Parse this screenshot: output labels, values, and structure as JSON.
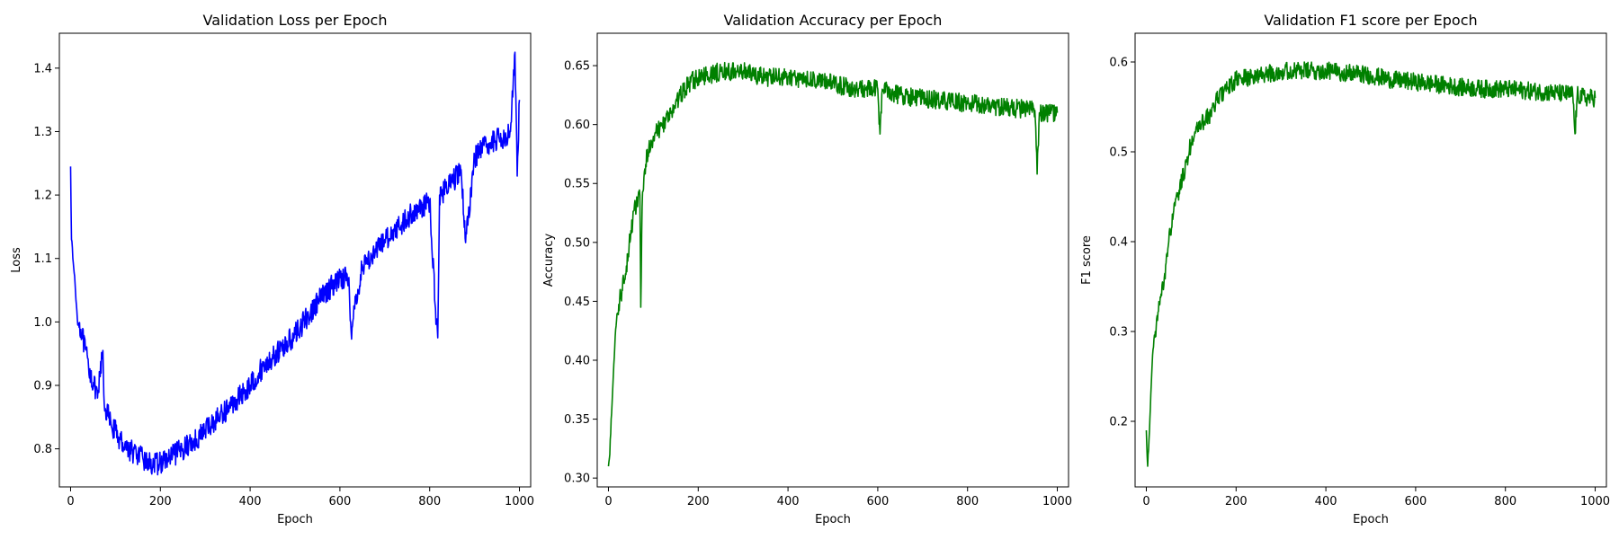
{
  "chart_data": [
    {
      "type": "line",
      "title": "Validation Loss per Epoch",
      "xlabel": "Epoch",
      "ylabel": "Loss",
      "xlim": [
        -25,
        1025
      ],
      "ylim": [
        0.74,
        1.455
      ],
      "xticks": [
        0,
        200,
        400,
        600,
        800,
        1000
      ],
      "xtick_labels": [
        "0",
        "200",
        "400",
        "600",
        "800",
        "1000"
      ],
      "yticks": [
        0.8,
        0.9,
        1.0,
        1.1,
        1.2,
        1.3,
        1.4
      ],
      "ytick_labels": [
        "0.8",
        "0.9",
        "1.0",
        "1.1",
        "1.2",
        "1.3",
        "1.4"
      ],
      "grid": false,
      "color": "#0000ff",
      "series": [
        {
          "x": [
            0,
            2,
            5,
            10,
            15,
            25,
            40,
            60,
            72,
            75,
            90,
            110,
            130,
            150,
            170,
            185,
            200,
            220,
            250,
            280,
            300,
            330,
            360,
            400,
            430,
            460,
            500,
            530,
            560,
            600,
            620,
            625,
            650,
            680,
            700,
            730,
            760,
            800,
            815,
            818,
            822,
            850,
            870,
            880,
            900,
            930,
            960,
            980,
            990,
            995,
            1000
          ],
          "y": [
            1.245,
            1.13,
            1.1,
            1.06,
            1.005,
            0.98,
            0.93,
            0.88,
            0.955,
            0.87,
            0.84,
            0.815,
            0.8,
            0.79,
            0.78,
            0.775,
            0.778,
            0.785,
            0.8,
            0.815,
            0.83,
            0.85,
            0.87,
            0.9,
            0.93,
            0.95,
            0.98,
            1.01,
            1.04,
            1.07,
            1.07,
            0.985,
            1.09,
            1.11,
            1.13,
            1.15,
            1.17,
            1.19,
            1.0,
            0.975,
            1.2,
            1.22,
            1.24,
            1.125,
            1.26,
            1.28,
            1.29,
            1.3,
            1.425,
            1.23,
            1.35
          ]
        }
      ]
    },
    {
      "type": "line",
      "title": "Validation Accuracy per Epoch",
      "xlabel": "Epoch",
      "ylabel": "Accuracy",
      "xlim": [
        -25,
        1025
      ],
      "ylim": [
        0.2925,
        0.6775
      ],
      "xticks": [
        0,
        200,
        400,
        600,
        800,
        1000
      ],
      "xtick_labels": [
        "0",
        "200",
        "400",
        "600",
        "800",
        "1000"
      ],
      "yticks": [
        0.3,
        0.35,
        0.4,
        0.45,
        0.5,
        0.55,
        0.6,
        0.65
      ],
      "ytick_labels": [
        "0.30",
        "0.35",
        "0.40",
        "0.45",
        "0.50",
        "0.55",
        "0.60",
        "0.65"
      ],
      "grid": false,
      "color": "#008000",
      "series": [
        {
          "x": [
            0,
            3,
            6,
            10,
            15,
            20,
            30,
            40,
            50,
            60,
            70,
            72,
            75,
            80,
            90,
            100,
            120,
            140,
            160,
            180,
            200,
            250,
            300,
            350,
            400,
            450,
            500,
            550,
            600,
            605,
            610,
            650,
            700,
            750,
            800,
            850,
            900,
            950,
            955,
            960,
            980,
            1000
          ],
          "y": [
            0.31,
            0.32,
            0.35,
            0.38,
            0.42,
            0.44,
            0.46,
            0.48,
            0.51,
            0.53,
            0.54,
            0.445,
            0.53,
            0.56,
            0.58,
            0.59,
            0.6,
            0.61,
            0.625,
            0.635,
            0.64,
            0.645,
            0.645,
            0.64,
            0.64,
            0.638,
            0.635,
            0.63,
            0.63,
            0.592,
            0.63,
            0.625,
            0.622,
            0.62,
            0.618,
            0.616,
            0.614,
            0.612,
            0.558,
            0.61,
            0.61,
            0.61
          ]
        }
      ]
    },
    {
      "type": "line",
      "title": "Validation F1 score per Epoch",
      "xlabel": "Epoch",
      "ylabel": "F1 score",
      "xlim": [
        -25,
        1025
      ],
      "ylim": [
        0.127,
        0.632
      ],
      "xticks": [
        0,
        200,
        400,
        600,
        800,
        1000
      ],
      "xtick_labels": [
        "0",
        "200",
        "400",
        "600",
        "800",
        "1000"
      ],
      "yticks": [
        0.2,
        0.3,
        0.4,
        0.5,
        0.6
      ],
      "ytick_labels": [
        "0.2",
        "0.3",
        "0.4",
        "0.5",
        "0.6"
      ],
      "grid": false,
      "color": "#008000",
      "series": [
        {
          "x": [
            0,
            3,
            6,
            10,
            15,
            20,
            30,
            40,
            50,
            60,
            70,
            80,
            90,
            100,
            120,
            140,
            160,
            180,
            200,
            250,
            300,
            350,
            400,
            450,
            500,
            550,
            600,
            650,
            700,
            750,
            800,
            850,
            900,
            950,
            955,
            960,
            980,
            1000
          ],
          "y": [
            0.19,
            0.15,
            0.18,
            0.23,
            0.28,
            0.3,
            0.33,
            0.36,
            0.4,
            0.43,
            0.45,
            0.47,
            0.49,
            0.51,
            0.53,
            0.54,
            0.56,
            0.57,
            0.58,
            0.585,
            0.59,
            0.59,
            0.59,
            0.588,
            0.585,
            0.58,
            0.578,
            0.575,
            0.572,
            0.57,
            0.57,
            0.568,
            0.566,
            0.564,
            0.52,
            0.563,
            0.56,
            0.56
          ]
        }
      ]
    }
  ]
}
